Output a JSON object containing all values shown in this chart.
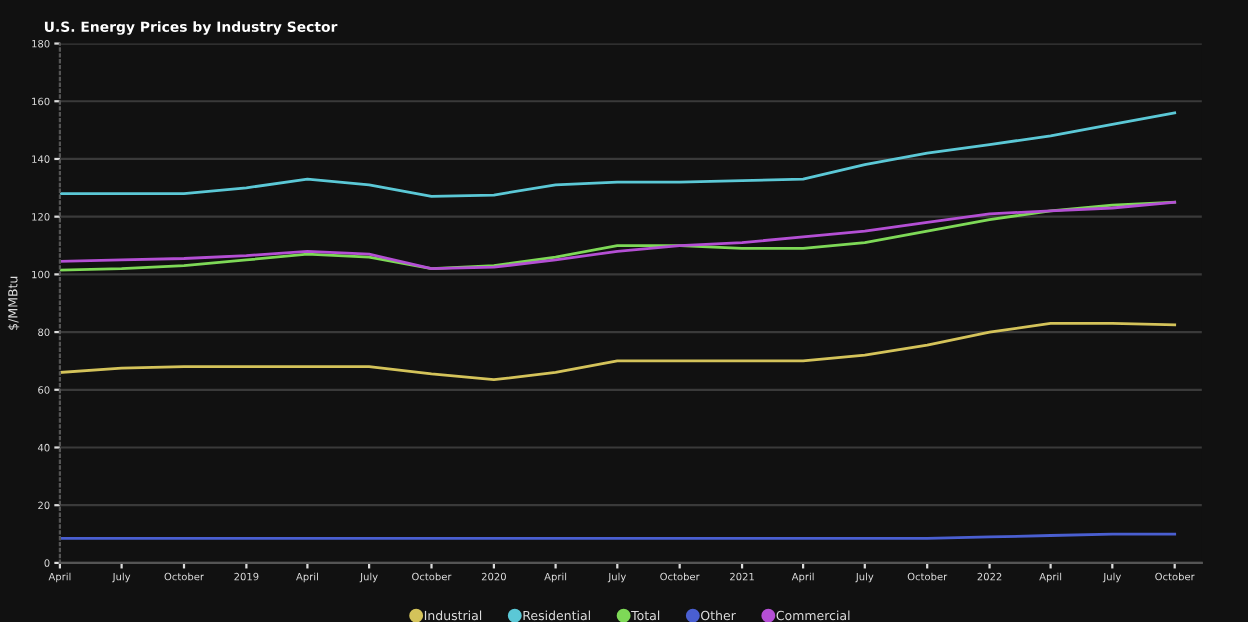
{
  "chart_data": {
    "type": "line",
    "title": "U.S. Energy Prices by Industry Sector",
    "ylabel": "$/MMBtu",
    "x": [
      "2018-04",
      "2018-07",
      "2018-10",
      "2019-01",
      "2019-04",
      "2019-07",
      "2019-10",
      "2020-01",
      "2020-04",
      "2020-07",
      "2020-10",
      "2021-01",
      "2021-04",
      "2021-07",
      "2021-10",
      "2022-01",
      "2022-04",
      "2022-07",
      "2022-10"
    ],
    "series": [
      {
        "name": "Industrial",
        "color": "#d4c35a",
        "values": [
          66,
          67.5,
          68,
          68,
          68,
          68,
          65.5,
          63.5,
          66,
          70,
          70,
          70,
          70,
          72,
          75.5,
          80,
          83,
          83,
          82.5
        ]
      },
      {
        "name": "Residential",
        "color": "#5bc8d6",
        "values": [
          128,
          128,
          128,
          130,
          133,
          131,
          127,
          127.5,
          131,
          132,
          132,
          132.5,
          133,
          138,
          142,
          145,
          148,
          152,
          156
        ]
      },
      {
        "name": "Total",
        "color": "#7ed957",
        "values": [
          101.5,
          102,
          103,
          105,
          107,
          106,
          102,
          103,
          106,
          110,
          110,
          109,
          109,
          111,
          115,
          119,
          122,
          124,
          125
        ]
      },
      {
        "name": "Other",
        "color": "#4a5fd1",
        "values": [
          8.5,
          8.5,
          8.5,
          8.5,
          8.5,
          8.5,
          8.5,
          8.5,
          8.5,
          8.5,
          8.5,
          8.5,
          8.5,
          8.5,
          8.5,
          9,
          9.5,
          10,
          10
        ]
      },
      {
        "name": "Commercial",
        "color": "#b44fd4",
        "values": [
          104.5,
          105,
          105.5,
          106.5,
          108,
          107,
          102,
          102.5,
          105,
          108,
          110,
          111,
          113,
          115,
          118,
          121,
          122,
          123,
          125
        ]
      }
    ],
    "xlim": [
      "2018-04-01",
      "2022-11-10"
    ],
    "xticks": [
      {
        "value": "2018-04-01",
        "label": "April"
      },
      {
        "value": "2018-07-01",
        "label": "July"
      },
      {
        "value": "2018-10-01",
        "label": "October"
      },
      {
        "value": "2019-01-01",
        "label": "2019"
      },
      {
        "value": "2019-04-01",
        "label": "April"
      },
      {
        "value": "2019-07-01",
        "label": "July"
      },
      {
        "value": "2019-10-01",
        "label": "October"
      },
      {
        "value": "2020-01-01",
        "label": "2020"
      },
      {
        "value": "2020-04-01",
        "label": "April"
      },
      {
        "value": "2020-07-01",
        "label": "July"
      },
      {
        "value": "2020-10-01",
        "label": "October"
      },
      {
        "value": "2021-01-01",
        "label": "2021"
      },
      {
        "value": "2021-04-01",
        "label": "April"
      },
      {
        "value": "2021-07-01",
        "label": "July"
      },
      {
        "value": "2021-10-01",
        "label": "October"
      },
      {
        "value": "2022-01-01",
        "label": "2022"
      },
      {
        "value": "2022-04-01",
        "label": "April"
      },
      {
        "value": "2022-07-01",
        "label": "July"
      },
      {
        "value": "2022-10-01",
        "label": "October"
      }
    ],
    "ylim": [
      0,
      180
    ],
    "yticks": [
      0,
      20,
      40,
      60,
      80,
      100,
      120,
      140,
      160,
      180
    ],
    "grid": "y",
    "legend": "bottom",
    "marker": "none",
    "line_style": "solid"
  }
}
